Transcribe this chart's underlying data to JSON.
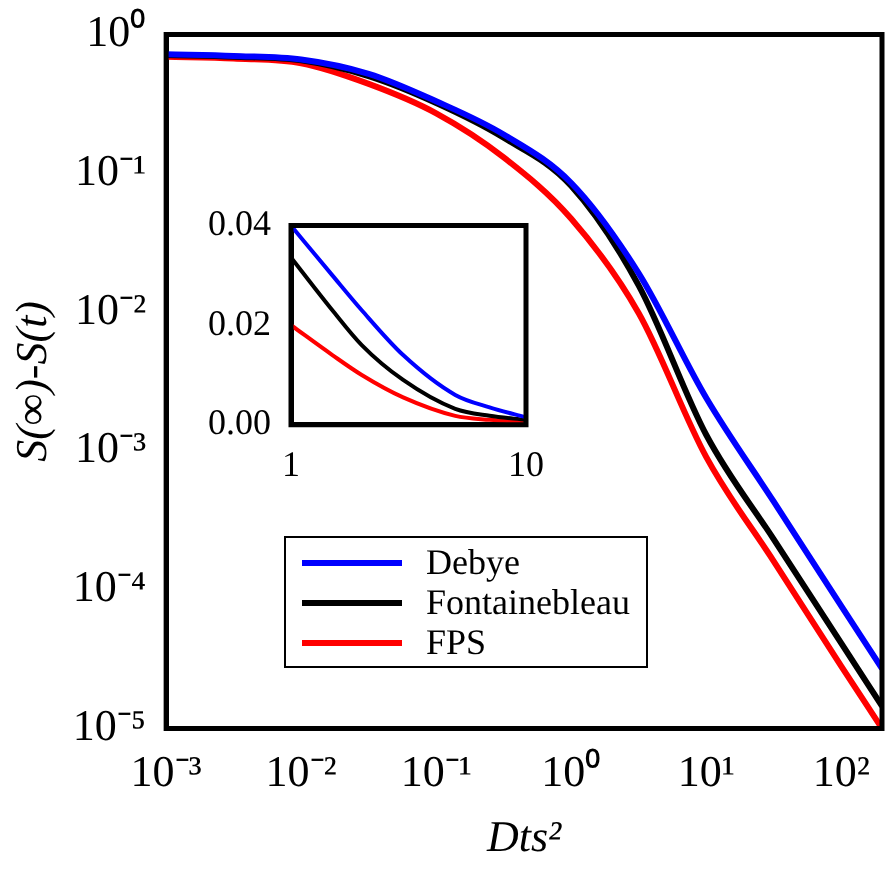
{
  "chart_data": [
    {
      "type": "line",
      "xlabel": "Dts²",
      "ylabel": "S(∞)-S(t)",
      "x": [
        0.001,
        0.00316,
        0.01,
        0.0316,
        0.1,
        0.316,
        1,
        3.16,
        10,
        31.6,
        100,
        200
      ],
      "series": [
        {
          "name": "Debye",
          "color": "#0000ff",
          "values": [
            0.72,
            0.7,
            0.66,
            0.52,
            0.33,
            0.19,
            0.085,
            0.019,
            0.0024,
            0.00043,
            7.6e-05,
            2.7e-05
          ]
        },
        {
          "name": "Fontainebleau",
          "color": "#000000",
          "values": [
            0.71,
            0.69,
            0.65,
            0.5,
            0.32,
            0.18,
            0.081,
            0.0155,
            0.0013,
            0.00023,
            4.1e-05,
            1.45e-05
          ]
        },
        {
          "name": "FPS",
          "color": "#ff0000",
          "values": [
            0.69,
            0.67,
            0.62,
            0.44,
            0.27,
            0.13,
            0.047,
            0.0098,
            0.0009,
            0.00016,
            2.8e-05,
            1e-05
          ]
        }
      ],
      "xlim": [
        0.001,
        200
      ],
      "ylim": [
        1e-05,
        1
      ],
      "xticks": [
        {
          "value": 0.001,
          "label": "10⁻³"
        },
        {
          "value": 0.01,
          "label": "10⁻²"
        },
        {
          "value": 0.1,
          "label": "10⁻¹"
        },
        {
          "value": 1,
          "label": "10⁰"
        },
        {
          "value": 10,
          "label": "10¹"
        },
        {
          "value": 100,
          "label": "10²"
        }
      ],
      "yticks": [
        {
          "value": 1e-05,
          "label": "10⁻⁵"
        },
        {
          "value": 0.0001,
          "label": "10⁻⁴"
        },
        {
          "value": 0.001,
          "label": "10⁻³"
        },
        {
          "value": 0.01,
          "label": "10⁻²"
        },
        {
          "value": 0.1,
          "label": "10⁻¹"
        },
        {
          "value": 1,
          "label": "10⁰"
        }
      ],
      "log": "xy",
      "legend": "bottom left"
    },
    {
      "type": "line",
      "x": [
        1,
        1.5,
        2,
        3,
        5,
        7,
        10
      ],
      "series": [
        {
          "color": "#0000ff",
          "values": [
            0.04,
            0.03,
            0.023,
            0.014,
            0.006,
            0.0035,
            0.0015
          ]
        },
        {
          "color": "#000000",
          "values": [
            0.0336,
            0.023,
            0.016,
            0.009,
            0.0032,
            0.0018,
            0.001
          ]
        },
        {
          "color": "#ff0000",
          "values": [
            0.02,
            0.014,
            0.01,
            0.0055,
            0.0018,
            0.001,
            0.0005
          ]
        }
      ],
      "xlim": [
        1,
        10
      ],
      "ylim": [
        0,
        0.04
      ],
      "xticks": [
        1,
        10
      ],
      "yticks": [
        {
          "value": 0,
          "label": "0.00"
        },
        0.02,
        0.04
      ],
      "log": "x"
    }
  ]
}
